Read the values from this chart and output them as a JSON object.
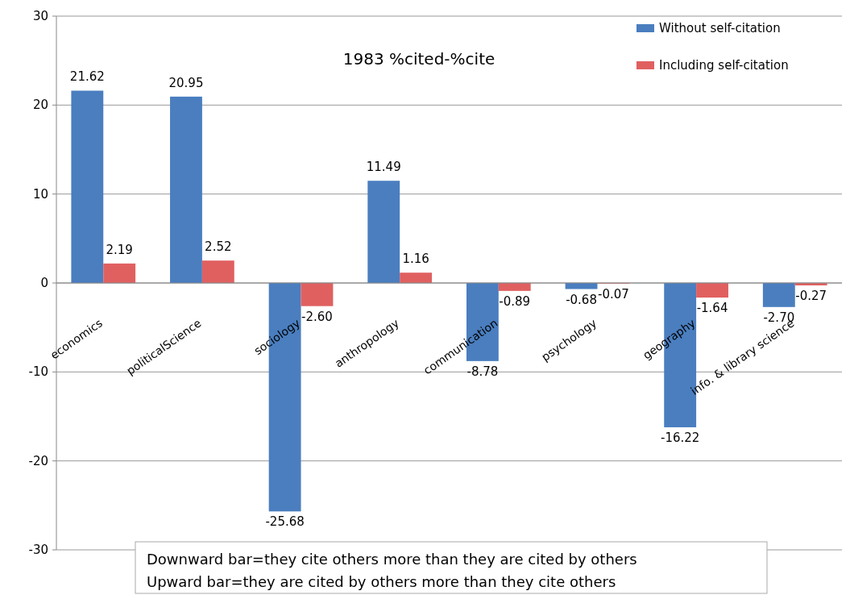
{
  "chart_data": {
    "type": "bar",
    "title": "1983 %cited-%cite",
    "categories": [
      "economics",
      "politicalScience",
      "sociology",
      "anthropology",
      "communication",
      "psychology",
      "geography",
      "info. & library science"
    ],
    "series": [
      {
        "name": "Without self-citation",
        "color": "#4a7ebf",
        "values": [
          21.62,
          20.95,
          -25.68,
          11.49,
          -8.78,
          -0.68,
          -16.22,
          -2.7
        ],
        "value_labels": [
          "21.62",
          "20.95",
          "-25.68",
          "11.49",
          "-8.78",
          "-0.68",
          "-16.22",
          "-2.70"
        ]
      },
      {
        "name": "Including self-citation",
        "color": "#e06060",
        "values": [
          2.19,
          2.52,
          -2.6,
          1.16,
          -0.89,
          -0.07,
          -1.64,
          -0.27
        ],
        "value_labels": [
          "2.19",
          "2.52",
          "-2.60",
          "1.16",
          "-0.89",
          "-0.07",
          "-1.64",
          "-0.27"
        ]
      }
    ],
    "ylim": [
      -30,
      30
    ],
    "yticks": [
      -30,
      -20,
      -10,
      0,
      10,
      20,
      30
    ],
    "grid": "y",
    "legend": "top right",
    "annotations": [
      "Downward bar=they cite others more than they are cited by others",
      "Upward bar=they are cited by others more than they cite others"
    ]
  }
}
